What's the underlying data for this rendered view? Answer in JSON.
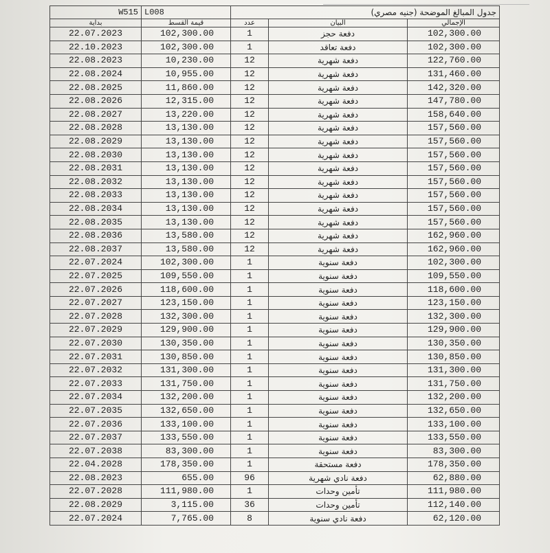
{
  "header": {
    "code": "W515",
    "unit": "L008",
    "title": "جدول المبالغ الموضحة (جنيه مصري)"
  },
  "table": {
    "columns": [
      "بداية",
      "قيمة القسط",
      "عدد",
      "البيان",
      "الإجمالي"
    ],
    "rows": [
      [
        "22.07.2023",
        "102,300.00",
        "1",
        "دفعة حجز",
        "102,300.00"
      ],
      [
        "22.10.2023",
        "102,300.00",
        "1",
        "دفعة تعاقد",
        "102,300.00"
      ],
      [
        "22.08.2023",
        "10,230.00",
        "12",
        "دفعة شهرية",
        "122,760.00"
      ],
      [
        "22.08.2024",
        "10,955.00",
        "12",
        "دفعة شهرية",
        "131,460.00"
      ],
      [
        "22.08.2025",
        "11,860.00",
        "12",
        "دفعة شهرية",
        "142,320.00"
      ],
      [
        "22.08.2026",
        "12,315.00",
        "12",
        "دفعة شهرية",
        "147,780.00"
      ],
      [
        "22.08.2027",
        "13,220.00",
        "12",
        "دفعة شهرية",
        "158,640.00"
      ],
      [
        "22.08.2028",
        "13,130.00",
        "12",
        "دفعة شهرية",
        "157,560.00"
      ],
      [
        "22.08.2029",
        "13,130.00",
        "12",
        "دفعة شهرية",
        "157,560.00"
      ],
      [
        "22.08.2030",
        "13,130.00",
        "12",
        "دفعة شهرية",
        "157,560.00"
      ],
      [
        "22.08.2031",
        "13,130.00",
        "12",
        "دفعة شهرية",
        "157,560.00"
      ],
      [
        "22.08.2032",
        "13,130.00",
        "12",
        "دفعة شهرية",
        "157,560.00"
      ],
      [
        "22.08.2033",
        "13,130.00",
        "12",
        "دفعة شهرية",
        "157,560.00"
      ],
      [
        "22.08.2034",
        "13,130.00",
        "12",
        "دفعة شهرية",
        "157,560.00"
      ],
      [
        "22.08.2035",
        "13,130.00",
        "12",
        "دفعة شهرية",
        "157,560.00"
      ],
      [
        "22.08.2036",
        "13,580.00",
        "12",
        "دفعة شهرية",
        "162,960.00"
      ],
      [
        "22.08.2037",
        "13,580.00",
        "12",
        "دفعة شهرية",
        "162,960.00"
      ],
      [
        "22.07.2024",
        "102,300.00",
        "1",
        "دفعة سنوية",
        "102,300.00"
      ],
      [
        "22.07.2025",
        "109,550.00",
        "1",
        "دفعة سنوية",
        "109,550.00"
      ],
      [
        "22.07.2026",
        "118,600.00",
        "1",
        "دفعة سنوية",
        "118,600.00"
      ],
      [
        "22.07.2027",
        "123,150.00",
        "1",
        "دفعة سنوية",
        "123,150.00"
      ],
      [
        "22.07.2028",
        "132,300.00",
        "1",
        "دفعة سنوية",
        "132,300.00"
      ],
      [
        "22.07.2029",
        "129,900.00",
        "1",
        "دفعة سنوية",
        "129,900.00"
      ],
      [
        "22.07.2030",
        "130,350.00",
        "1",
        "دفعة سنوية",
        "130,350.00"
      ],
      [
        "22.07.2031",
        "130,850.00",
        "1",
        "دفعة سنوية",
        "130,850.00"
      ],
      [
        "22.07.2032",
        "131,300.00",
        "1",
        "دفعة سنوية",
        "131,300.00"
      ],
      [
        "22.07.2033",
        "131,750.00",
        "1",
        "دفعة سنوية",
        "131,750.00"
      ],
      [
        "22.07.2034",
        "132,200.00",
        "1",
        "دفعة سنوية",
        "132,200.00"
      ],
      [
        "22.07.2035",
        "132,650.00",
        "1",
        "دفعة سنوية",
        "132,650.00"
      ],
      [
        "22.07.2036",
        "133,100.00",
        "1",
        "دفعة سنوية",
        "133,100.00"
      ],
      [
        "22.07.2037",
        "133,550.00",
        "1",
        "دفعة سنوية",
        "133,550.00"
      ],
      [
        "22.07.2038",
        "83,300.00",
        "1",
        "دفعة سنوية",
        "83,300.00"
      ],
      [
        "22.04.2028",
        "178,350.00",
        "1",
        "دفعة مستحقة",
        "178,350.00"
      ],
      [
        "22.08.2023",
        "655.00",
        "96",
        "دفعة نادي شهرية",
        "62,880.00"
      ],
      [
        "22.07.2028",
        "111,980.00",
        "1",
        "تأمين وحدات",
        "111,980.00"
      ],
      [
        "22.08.2029",
        "3,115.00",
        "36",
        "تأمين وحدات",
        "112,140.00"
      ],
      [
        "22.07.2024",
        "7,765.00",
        "8",
        "دفعة نادي سنوية",
        "62,120.00"
      ]
    ]
  }
}
